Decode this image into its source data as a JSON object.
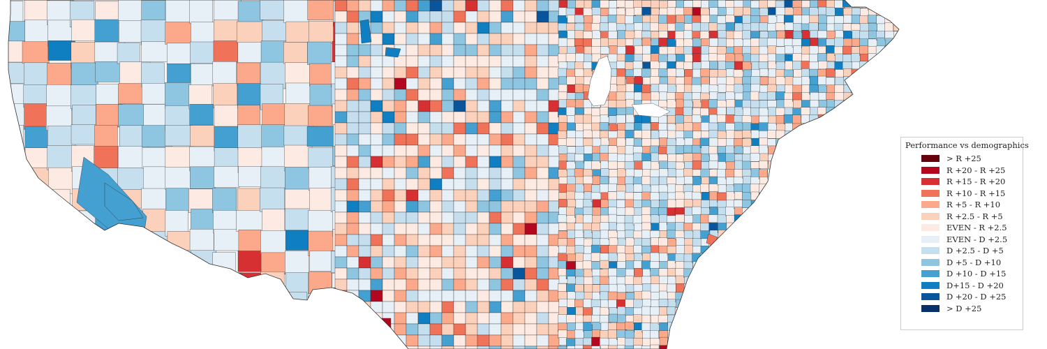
{
  "legend": {
    "title": "Performance vs demographics",
    "items": [
      {
        "label": "> R +25",
        "color": "#67000d"
      },
      {
        "label": "R +20 - R +25",
        "color": "#b2071e"
      },
      {
        "label": "R +15 - R +20",
        "color": "#d63033"
      },
      {
        "label": "R +10 - R +15",
        "color": "#ef7259"
      },
      {
        "label": "R +5 - R +10",
        "color": "#fba98a"
      },
      {
        "label": "R +2.5 - R +5",
        "color": "#fcd1bc"
      },
      {
        "label": "EVEN - R +2.5",
        "color": "#fdebe3"
      },
      {
        "label": "EVEN - D +2.5",
        "color": "#e7f0f7"
      },
      {
        "label": "D +2.5 - D +5",
        "color": "#c6dfee"
      },
      {
        "label": "D +5 - D +10",
        "color": "#8ec5e0"
      },
      {
        "label": "D +10 - D +15",
        "color": "#44a0d1"
      },
      {
        "label": "D+15 - D +20",
        "color": "#0f7fc1"
      },
      {
        "label": "D +20 - D +25",
        "color": "#08559b"
      },
      {
        "label": "> D +25",
        "color": "#08306b"
      }
    ]
  }
}
